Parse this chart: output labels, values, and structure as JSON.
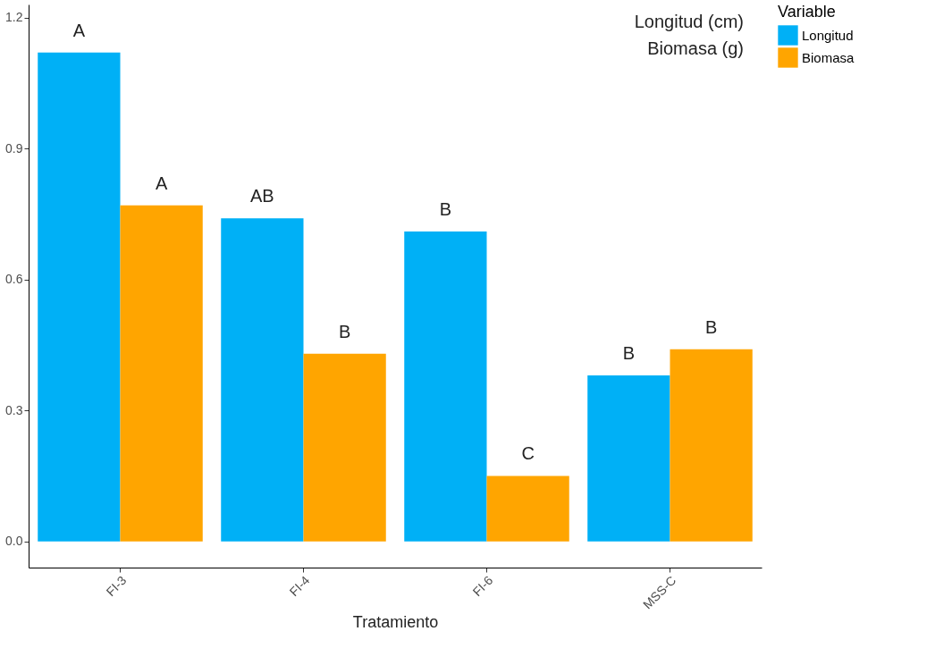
{
  "chart_data": {
    "type": "bar",
    "categories": [
      "FI-3",
      "FI-4",
      "FI-6",
      "MSS-C"
    ],
    "series": [
      {
        "name": "Longitud",
        "color": "#00b0f6",
        "values": [
          1.12,
          0.74,
          0.71,
          0.38
        ],
        "value_labels": [
          "A",
          "AB",
          "B",
          "B"
        ]
      },
      {
        "name": "Biomasa",
        "color": "#ffa500",
        "values": [
          0.77,
          0.43,
          0.15,
          0.44
        ],
        "value_labels": [
          "A",
          "B",
          "C",
          "B"
        ]
      }
    ],
    "xlabel": "Tratamiento",
    "legend_title": "Variable",
    "legend": "right",
    "annotations": [
      "Longitud (cm)",
      "Biomasa (g)"
    ],
    "ylim": [
      -0.06,
      1.23
    ],
    "yticks": [
      {
        "value": 0,
        "label": "0.0"
      },
      0.3,
      0.6,
      0.9,
      1.2
    ],
    "grid": false
  }
}
